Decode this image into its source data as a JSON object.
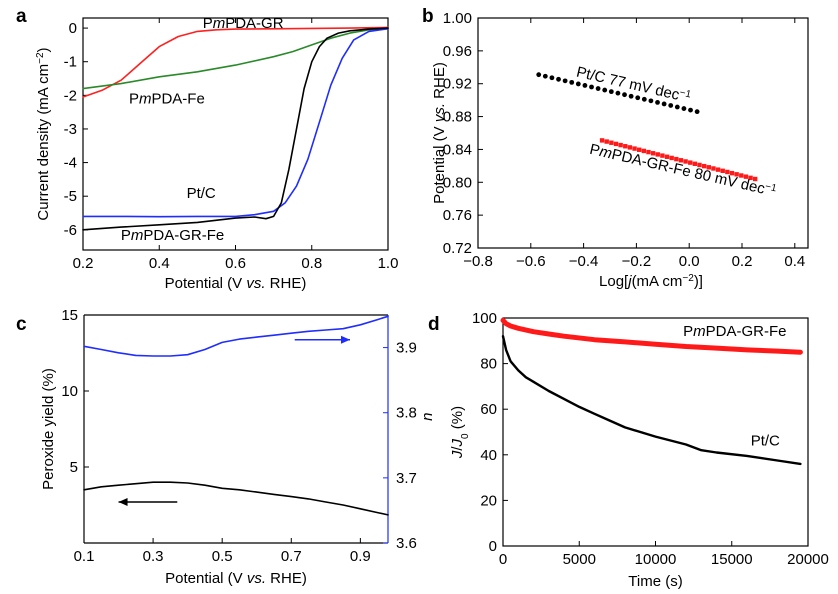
{
  "chart_data": [
    {
      "panel": "a",
      "type": "line",
      "xlabel": [
        "Potential (V ",
        "vs.",
        " RHE)"
      ],
      "ylabel": "Current density (mA cm",
      "ylabel_sup": "−2",
      "ylabel_end": ")",
      "xlim": [
        0.2,
        1.0
      ],
      "ylim": [
        -6.6,
        0.3
      ],
      "xticks": [
        0.2,
        0.4,
        0.6,
        0.8,
        1.0
      ],
      "yticks": [
        0,
        -1,
        -2,
        -3,
        -4,
        -5,
        -6
      ],
      "xtick_labels": [
        "0.2",
        "0.4",
        "0.6",
        "0.8",
        "1.0"
      ],
      "ytick_labels": [
        "0",
        "-1",
        "-2",
        "-3",
        "-4",
        "-5",
        "-6"
      ],
      "series": [
        {
          "name": [
            "P",
            "m",
            "PDA-GR"
          ],
          "color": "#ff2020",
          "x": [
            0.2,
            0.25,
            0.3,
            0.35,
            0.4,
            0.45,
            0.5,
            0.55,
            0.6,
            0.7,
            0.8,
            0.9,
            1.0
          ],
          "y": [
            -2.05,
            -1.85,
            -1.55,
            -1.05,
            -0.55,
            -0.25,
            -0.1,
            -0.05,
            -0.03,
            -0.02,
            -0.01,
            0.0,
            0.02
          ]
        },
        {
          "name": [
            "P",
            "m",
            "PDA-Fe"
          ],
          "color": "#2a8a2a",
          "x": [
            0.2,
            0.3,
            0.4,
            0.5,
            0.6,
            0.7,
            0.75,
            0.8,
            0.85,
            0.9,
            0.95,
            1.0
          ],
          "y": [
            -1.8,
            -1.65,
            -1.45,
            -1.3,
            -1.1,
            -0.85,
            -0.7,
            -0.5,
            -0.3,
            -0.15,
            -0.05,
            0.0
          ]
        },
        {
          "name": "Pt/C",
          "color": "#1f2dff",
          "x": [
            0.2,
            0.3,
            0.4,
            0.5,
            0.6,
            0.65,
            0.7,
            0.73,
            0.76,
            0.79,
            0.82,
            0.85,
            0.88,
            0.91,
            0.95,
            1.0
          ],
          "y": [
            -5.6,
            -5.6,
            -5.61,
            -5.6,
            -5.6,
            -5.55,
            -5.45,
            -5.2,
            -4.7,
            -3.9,
            -2.8,
            -1.7,
            -0.9,
            -0.35,
            -0.1,
            -0.02
          ]
        },
        {
          "name": [
            "P",
            "m",
            "PDA-GR-Fe"
          ],
          "color": "#000000",
          "x": [
            0.2,
            0.3,
            0.4,
            0.5,
            0.6,
            0.65,
            0.68,
            0.7,
            0.72,
            0.74,
            0.76,
            0.78,
            0.8,
            0.82,
            0.84,
            0.87,
            0.9,
            0.95,
            1.0
          ],
          "y": [
            -6.0,
            -5.92,
            -5.85,
            -5.78,
            -5.65,
            -5.62,
            -5.67,
            -5.6,
            -5.2,
            -4.2,
            -3.0,
            -1.8,
            -1.0,
            -0.55,
            -0.3,
            -0.15,
            -0.08,
            -0.03,
            0.0
          ]
        }
      ],
      "annotations": [
        {
          "text": [
            "P",
            "m",
            "PDA-GR"
          ],
          "x": 0.62,
          "y": 0.0,
          "color": "#000000"
        },
        {
          "text": [
            "P",
            "m",
            "PDA-Fe"
          ],
          "x": 0.42,
          "y": -2.25,
          "color": "#000000"
        },
        {
          "text": "Pt/C",
          "x": 0.51,
          "y": -5.05,
          "color": "#000000"
        },
        {
          "text": [
            "P",
            "m",
            "PDA-GR-Fe"
          ],
          "x": 0.435,
          "y": -6.3,
          "color": "#000000"
        }
      ]
    },
    {
      "panel": "b",
      "type": "scatter",
      "xlabel": [
        "Log[",
        "j",
        "(mA cm",
        "−2",
        ")]"
      ],
      "ylabel": [
        "Potential (V ",
        "vs.",
        " RHE)"
      ],
      "xlim": [
        -0.8,
        0.45
      ],
      "ylim": [
        0.72,
        1.0
      ],
      "xticks": [
        -0.8,
        -0.6,
        -0.4,
        -0.2,
        0.0,
        0.2,
        0.4
      ],
      "yticks": [
        0.72,
        0.76,
        0.8,
        0.84,
        0.88,
        0.92,
        0.96,
        1.0
      ],
      "xtick_labels": [
        "−0.8",
        "−0.6",
        "−0.4",
        "−0.2",
        "0.0",
        "0.2",
        "0.4"
      ],
      "ytick_labels": [
        "0.72",
        "0.76",
        "0.80",
        "0.84",
        "0.88",
        "0.92",
        "0.96",
        "1.00"
      ],
      "series": [
        {
          "name": "Pt/C",
          "color": "#000000",
          "x_start": -0.57,
          "x_end": 0.03,
          "y_start": 0.931,
          "y_end": 0.886,
          "n": 25
        },
        {
          "name": [
            "P",
            "m",
            "PDA-GR-Fe"
          ],
          "color": "#ff1a1a",
          "x_start": -0.33,
          "x_end": 0.25,
          "y_start": 0.851,
          "y_end": 0.804,
          "n": 34
        }
      ],
      "annotations": [
        {
          "text": [
            "Pt/C 77 mV dec",
            "−1"
          ],
          "x": -0.43,
          "y": 0.929,
          "rotate": 13,
          "color": "#000000"
        },
        {
          "text": [
            "P",
            "m",
            "PDA-GR-Fe 80 mV dec",
            "−1"
          ],
          "x": -0.38,
          "y": 0.835,
          "rotate": 13,
          "color": "#000000"
        }
      ]
    },
    {
      "panel": "c",
      "type": "line",
      "xlabel": [
        "Potential (V ",
        "vs.",
        " RHE)"
      ],
      "ylabel": "Peroxide yield (%)",
      "ylabel2": "n",
      "xlim": [
        0.1,
        0.98
      ],
      "ylim": [
        0.0,
        15.0
      ],
      "y2lim": [
        3.6,
        3.95
      ],
      "xticks": [
        0.1,
        0.3,
        0.5,
        0.7,
        0.9
      ],
      "yticks": [
        5,
        10,
        15
      ],
      "y2ticks": [
        3.6,
        3.7,
        3.8,
        3.9
      ],
      "xtick_labels": [
        "0.1",
        "0.3",
        "0.5",
        "0.7",
        "0.9"
      ],
      "ytick_labels": [
        "5",
        "10",
        "15"
      ],
      "y2tick_labels": [
        "3.6",
        "3.7",
        "3.8",
        "3.9"
      ],
      "series": [
        {
          "name": "n",
          "axis": "right",
          "color": "#1f2dff",
          "x": [
            0.1,
            0.15,
            0.2,
            0.25,
            0.3,
            0.35,
            0.4,
            0.45,
            0.5,
            0.55,
            0.6,
            0.65,
            0.7,
            0.75,
            0.8,
            0.85,
            0.9,
            0.95,
            0.98
          ],
          "y": [
            3.902,
            3.897,
            3.892,
            3.888,
            3.887,
            3.887,
            3.889,
            3.897,
            3.908,
            3.913,
            3.916,
            3.919,
            3.922,
            3.925,
            3.927,
            3.929,
            3.935,
            3.943,
            3.948
          ]
        },
        {
          "name": "Peroxide yield",
          "axis": "left",
          "color": "#000000",
          "x": [
            0.1,
            0.15,
            0.2,
            0.25,
            0.3,
            0.35,
            0.4,
            0.45,
            0.5,
            0.55,
            0.6,
            0.65,
            0.7,
            0.75,
            0.8,
            0.85,
            0.9,
            0.95,
            0.98
          ],
          "y": [
            3.5,
            3.7,
            3.8,
            3.9,
            4.0,
            4.0,
            3.95,
            3.8,
            3.6,
            3.5,
            3.35,
            3.2,
            3.05,
            2.9,
            2.7,
            2.5,
            2.25,
            2.0,
            1.85
          ]
        }
      ],
      "arrows": [
        {
          "x_from": 0.71,
          "x_to": 0.87,
          "y": 3.912,
          "axis": "right",
          "color": "#1f2dff"
        },
        {
          "x_from": 0.37,
          "x_to": 0.2,
          "y": 2.7,
          "axis": "left",
          "color": "#000000"
        }
      ]
    },
    {
      "panel": "d",
      "type": "line",
      "xlabel": "Time (s)",
      "ylabel": [
        "J",
        "/",
        "J",
        "0",
        " (%)"
      ],
      "xlim": [
        0,
        20000
      ],
      "ylim": [
        0,
        100
      ],
      "xticks": [
        0,
        5000,
        10000,
        15000,
        20000
      ],
      "yticks": [
        0,
        20,
        40,
        60,
        80,
        100
      ],
      "xtick_labels": [
        "0",
        "5000",
        "10000",
        "15000",
        "20000"
      ],
      "ytick_labels": [
        "0",
        "20",
        "40",
        "60",
        "80",
        "100"
      ],
      "series": [
        {
          "name": [
            "P",
            "m",
            "PDA-GR-Fe"
          ],
          "color": "#ff1a1a",
          "style": "thick",
          "x": [
            0,
            200,
            500,
            1000,
            2000,
            3000,
            4000,
            6000,
            8000,
            10000,
            12000,
            14000,
            16000,
            18000,
            19500
          ],
          "y": [
            99,
            97.5,
            96.5,
            95.5,
            94,
            93,
            92,
            90.5,
            89.5,
            88.5,
            87.5,
            86.8,
            86,
            85.5,
            85
          ]
        },
        {
          "name": "Pt/C",
          "color": "#000000",
          "x": [
            0,
            200,
            500,
            1000,
            1500,
            2000,
            3000,
            4000,
            5000,
            6000,
            7000,
            8000,
            10000,
            12000,
            13000,
            14000,
            16000,
            18000,
            19500
          ],
          "y": [
            92,
            86,
            81,
            77,
            74,
            72,
            68,
            64.5,
            61,
            58,
            55,
            52,
            48,
            44.5,
            42,
            41,
            39.5,
            37.5,
            36
          ]
        }
      ],
      "annotations": [
        {
          "text": [
            "P",
            "m",
            "PDA-GR-Fe"
          ],
          "x": 15200,
          "y": 92,
          "color": "#000000"
        },
        {
          "text": "Pt/C",
          "x": 17200,
          "y": 44,
          "color": "#000000"
        }
      ]
    }
  ]
}
